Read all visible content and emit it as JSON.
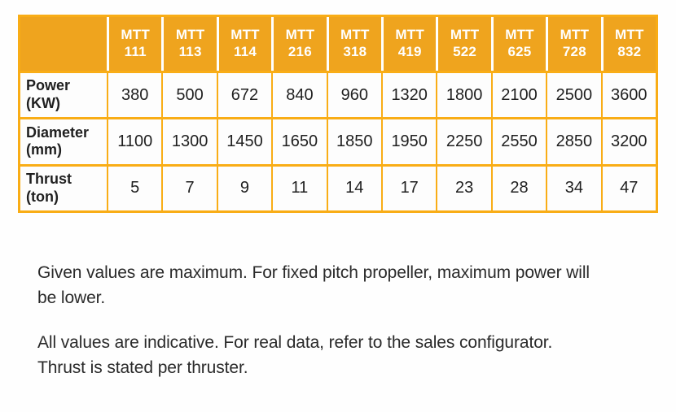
{
  "colors": {
    "header_bg": "#EFA41E",
    "grid_border": "#F9AD16",
    "header_text": "#FFFFFF",
    "body_text": "#1F1F1F"
  },
  "table": {
    "columns": [
      {
        "prefix": "MTT",
        "number": "111"
      },
      {
        "prefix": "MTT",
        "number": "113"
      },
      {
        "prefix": "MTT",
        "number": "114"
      },
      {
        "prefix": "MTT",
        "number": "216"
      },
      {
        "prefix": "MTT",
        "number": "318"
      },
      {
        "prefix": "MTT",
        "number": "419"
      },
      {
        "prefix": "MTT",
        "number": "522"
      },
      {
        "prefix": "MTT",
        "number": "625"
      },
      {
        "prefix": "MTT",
        "number": "728"
      },
      {
        "prefix": "MTT",
        "number": "832"
      }
    ],
    "rows": [
      {
        "label": "Power",
        "unit": "(KW)",
        "values": [
          380,
          500,
          672,
          840,
          960,
          1320,
          1800,
          2100,
          2500,
          3600
        ]
      },
      {
        "label": "Diameter",
        "unit": "(mm)",
        "values": [
          1100,
          1300,
          1450,
          1650,
          1850,
          1950,
          2250,
          2550,
          2850,
          3200
        ]
      },
      {
        "label": "Thrust",
        "unit": "(ton)",
        "values": [
          5,
          7,
          9,
          11,
          14,
          17,
          23,
          28,
          34,
          47
        ]
      }
    ]
  },
  "notes": [
    {
      "lines": [
        "Given values are maximum. For fixed pitch propeller, maximum power will",
        "be lower."
      ]
    },
    {
      "lines": [
        "All values are indicative. For real data, refer to the sales configurator.",
        "Thrust is stated per thruster."
      ]
    }
  ]
}
